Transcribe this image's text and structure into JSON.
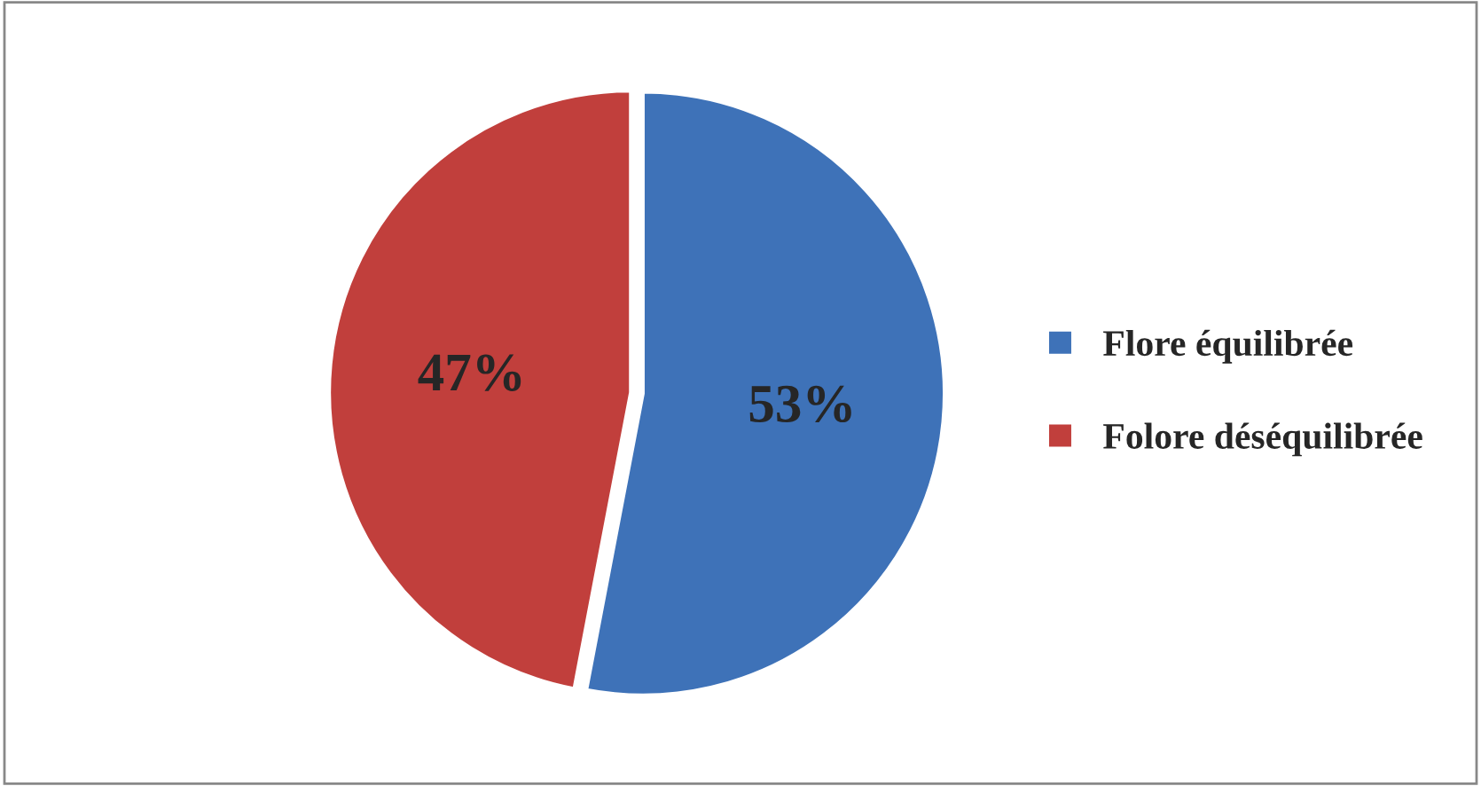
{
  "chart_data": {
    "type": "pie",
    "categories": [
      "Flore équilibrée",
      "Folore déséquilibrée"
    ],
    "values": [
      53,
      47
    ],
    "colors": [
      "#3e72b8",
      "#c13f3c"
    ],
    "value_labels": [
      "53%",
      "47%"
    ],
    "legend": "right"
  }
}
